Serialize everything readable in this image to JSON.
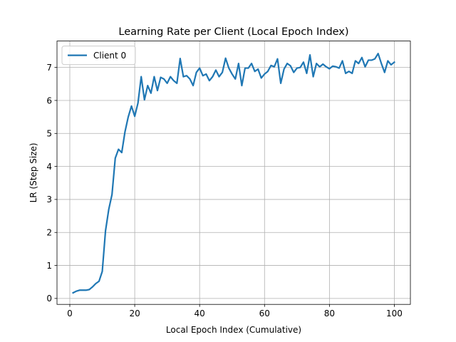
{
  "chart_data": {
    "type": "line",
    "title": "Learning Rate per Client (Local Epoch Index)",
    "xlabel": "Local Epoch Index (Cumulative)",
    "ylabel": "LR (Step Size)",
    "xlim": [
      -3.95,
      104.95
    ],
    "ylim": [
      -0.18,
      7.8
    ],
    "xticks": [
      0,
      20,
      40,
      60,
      80,
      100
    ],
    "yticks": [
      0,
      1,
      2,
      3,
      4,
      5,
      6,
      7
    ],
    "grid": true,
    "legend_position": "top-left",
    "series": [
      {
        "name": "Client 0",
        "color": "#1f77b4",
        "x": [
          1,
          2,
          3,
          4,
          5,
          6,
          7,
          8,
          9,
          10,
          11,
          12,
          13,
          14,
          15,
          16,
          17,
          18,
          19,
          20,
          21,
          22,
          23,
          24,
          25,
          26,
          27,
          28,
          29,
          30,
          31,
          32,
          33,
          34,
          35,
          36,
          37,
          38,
          39,
          40,
          41,
          42,
          43,
          44,
          45,
          46,
          47,
          48,
          49,
          50,
          51,
          52,
          53,
          54,
          55,
          56,
          57,
          58,
          59,
          60,
          61,
          62,
          63,
          64,
          65,
          66,
          67,
          68,
          69,
          70,
          71,
          72,
          73,
          74,
          75,
          76,
          77,
          78,
          79,
          80,
          81,
          82,
          83,
          84,
          85,
          86,
          87,
          88,
          89,
          90,
          91,
          92,
          93,
          94,
          95,
          96,
          97,
          98,
          99,
          100
        ],
        "values": [
          0.17,
          0.22,
          0.25,
          0.25,
          0.25,
          0.27,
          0.35,
          0.45,
          0.52,
          0.82,
          2.05,
          2.7,
          3.15,
          4.25,
          4.52,
          4.42,
          5.05,
          5.5,
          5.83,
          5.52,
          5.92,
          6.72,
          6.02,
          6.45,
          6.22,
          6.72,
          6.3,
          6.7,
          6.65,
          6.52,
          6.72,
          6.6,
          6.52,
          7.27,
          6.72,
          6.75,
          6.65,
          6.45,
          6.85,
          6.98,
          6.75,
          6.8,
          6.6,
          6.72,
          6.92,
          6.72,
          6.85,
          7.28,
          6.98,
          6.8,
          6.65,
          7.12,
          6.45,
          6.98,
          6.98,
          7.12,
          6.88,
          6.95,
          6.68,
          6.8,
          6.88,
          7.06,
          7.02,
          7.26,
          6.52,
          6.95,
          7.12,
          7.05,
          6.85,
          6.98,
          7.0,
          7.16,
          6.82,
          7.38,
          6.72,
          7.12,
          7.02,
          7.1,
          7.02,
          6.96,
          7.04,
          7.02,
          6.98,
          7.2,
          6.82,
          6.88,
          6.82,
          7.2,
          7.12,
          7.3,
          7.02,
          7.22,
          7.22,
          7.26,
          7.42,
          7.12,
          6.85,
          7.2,
          7.08,
          7.16
        ]
      }
    ]
  }
}
